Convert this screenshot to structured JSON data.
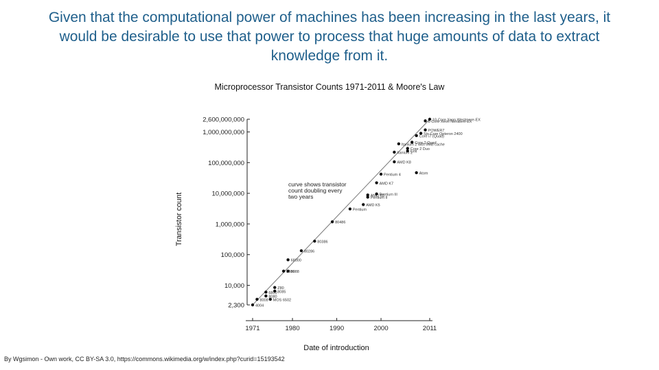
{
  "slide": {
    "heading": "Given that the computational power of machines has been increasing in the last years, it would be desirable to use that power to process that huge amounts of data to extract knowledge from it.",
    "credit": "By Wgsimon - Own work, CC BY-SA 3.0, https://commons.wikimedia.org/w/index.php?curid=15193542",
    "heading_color": "#1f5f8b"
  },
  "chart_data": {
    "type": "scatter",
    "title": "Microprocessor Transistor Counts 1971-2011 & Moore's Law",
    "xlabel": "Date of introduction",
    "ylabel": "Transistor count",
    "y_scale": "log",
    "xlim": [
      1971,
      2011
    ],
    "ylim": [
      2300,
      2600000000
    ],
    "x_ticks": [
      1971,
      1980,
      1990,
      2000,
      2011
    ],
    "y_ticks": [
      {
        "value": 2300,
        "label": "2,300"
      },
      {
        "value": 10000,
        "label": "10,000"
      },
      {
        "value": 100000,
        "label": "100,000"
      },
      {
        "value": 1000000,
        "label": "1,000,000"
      },
      {
        "value": 10000000,
        "label": "10,000,000"
      },
      {
        "value": 100000000,
        "label": "100,000,000"
      },
      {
        "value": 1000000000,
        "label": "1,000,000,000"
      },
      {
        "value": 2600000000,
        "label": "2,600,000,000"
      }
    ],
    "grid": false,
    "trend": {
      "label": "curve shows transistor count doubling every two years",
      "from": {
        "x": 1971,
        "y": 2300
      },
      "to": {
        "x": 2011,
        "y": 2600000000
      }
    },
    "series": [
      {
        "points": [
          {
            "x": 1971,
            "y": 2300,
            "label": "4004"
          },
          {
            "x": 1972,
            "y": 3500,
            "label": "8008"
          },
          {
            "x": 1974,
            "y": 4500,
            "label": "8080"
          },
          {
            "x": 1974,
            "y": 6000,
            "label": "6800"
          },
          {
            "x": 1976,
            "y": 8500,
            "label": "Z80"
          },
          {
            "x": 1975,
            "y": 3500,
            "label": "MOS 6502"
          },
          {
            "x": 1976,
            "y": 6500,
            "label": "8085"
          },
          {
            "x": 1978,
            "y": 29000,
            "label": "8086"
          },
          {
            "x": 1979,
            "y": 29000,
            "label": "8088"
          },
          {
            "x": 1979,
            "y": 68000,
            "label": "68000"
          },
          {
            "x": 1982,
            "y": 134000,
            "label": "80286"
          },
          {
            "x": 1985,
            "y": 275000,
            "label": "80386"
          },
          {
            "x": 1989,
            "y": 1180000,
            "label": "80486"
          },
          {
            "x": 1993,
            "y": 3100000,
            "label": "Pentium"
          },
          {
            "x": 1996,
            "y": 4300000,
            "label": "AMD K5"
          },
          {
            "x": 1997,
            "y": 7500000,
            "label": "Pentium II"
          },
          {
            "x": 1997,
            "y": 8800000,
            "label": "AMD K6"
          },
          {
            "x": 1999,
            "y": 9500000,
            "label": "Pentium III"
          },
          {
            "x": 1999,
            "y": 22000000,
            "label": "AMD K7"
          },
          {
            "x": 2000,
            "y": 42000000,
            "label": "Pentium 4"
          },
          {
            "x": 2003,
            "y": 105900000,
            "label": "AMD K8"
          },
          {
            "x": 2003,
            "y": 220000000,
            "label": "Itanium 2"
          },
          {
            "x": 2004,
            "y": 410000000,
            "label": "Itanium 2 with 9MB cache"
          },
          {
            "x": 2006,
            "y": 241000000,
            "label": "Cell"
          },
          {
            "x": 2008,
            "y": 47000000,
            "label": "Atom"
          },
          {
            "x": 2006,
            "y": 291000000,
            "label": "Core 2 Duo"
          },
          {
            "x": 2007,
            "y": 463000000,
            "label": "Core 2 Quad"
          },
          {
            "x": 2008,
            "y": 758000000,
            "label": "Core i7 (Quad)"
          },
          {
            "x": 2009,
            "y": 904000000,
            "label": "Six-Core Opteron 2400"
          },
          {
            "x": 2010,
            "y": 1170000000,
            "label": "POWER7"
          },
          {
            "x": 2010,
            "y": 2300000000,
            "label": "8-Core Xeon Nehalem-EX"
          },
          {
            "x": 2011,
            "y": 2600000000,
            "label": "10-Core Xeon Westmere-EX"
          }
        ]
      }
    ]
  }
}
